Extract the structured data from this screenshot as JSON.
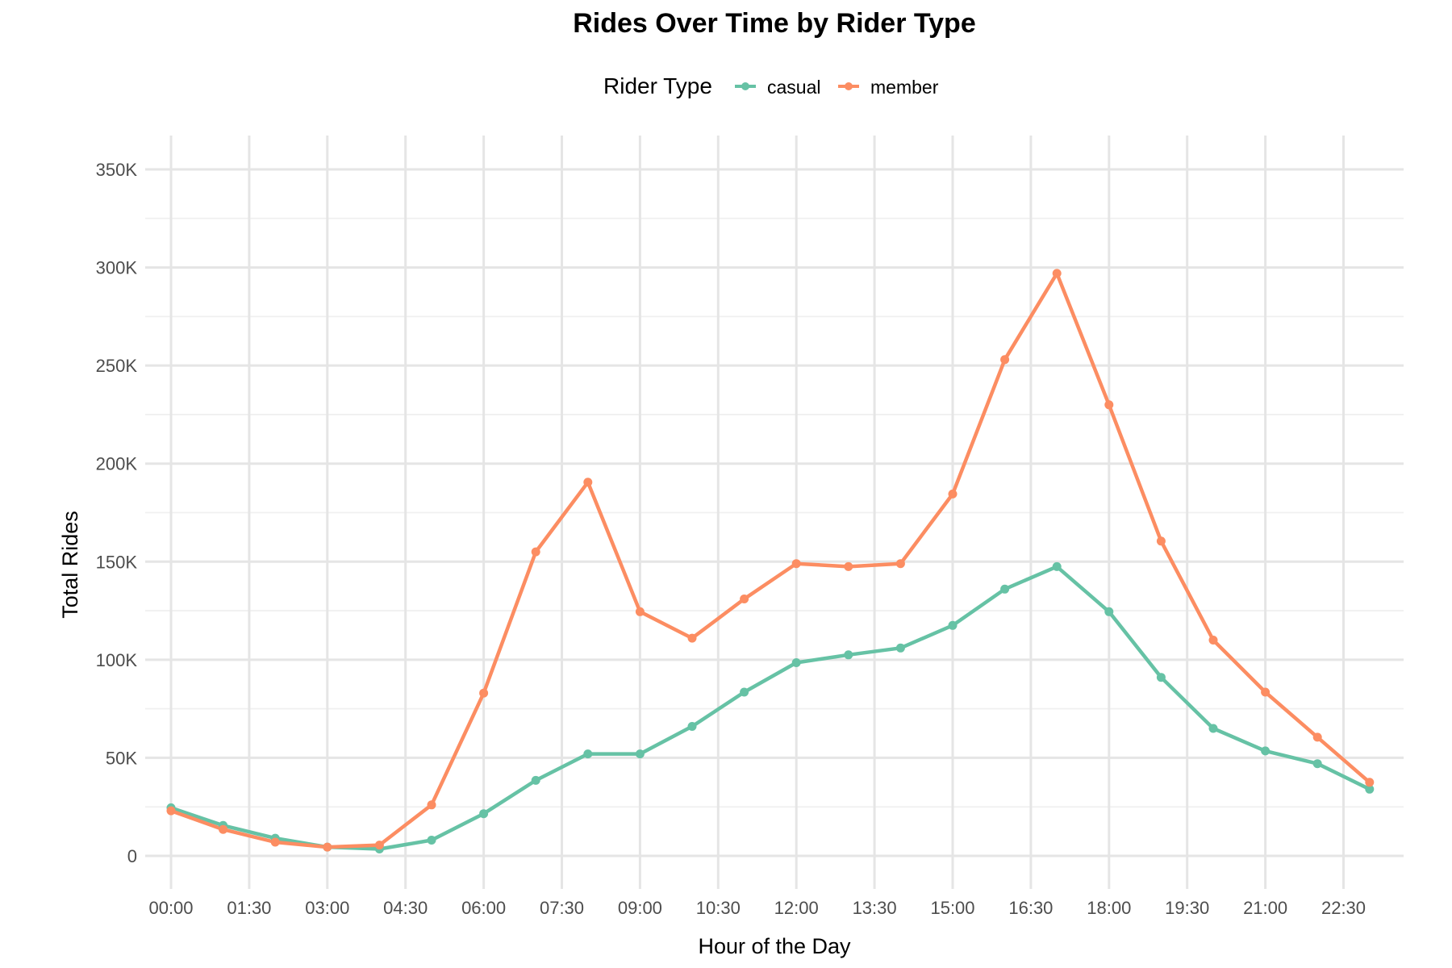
{
  "chart_data": {
    "type": "line",
    "title": "Rides Over Time by Rider Type",
    "xlabel": "Hour of the Day",
    "ylabel": "Total Rides",
    "legend": {
      "title": "Rider Type",
      "placement": "top"
    },
    "x_ticks": [
      "00:00",
      "01:30",
      "03:00",
      "04:30",
      "06:00",
      "07:30",
      "09:00",
      "10:30",
      "12:00",
      "13:30",
      "15:00",
      "16:30",
      "18:00",
      "19:30",
      "21:00",
      "22:30"
    ],
    "y_ticks": [
      "0",
      "50K",
      "100K",
      "150K",
      "200K",
      "250K",
      "300K",
      "350K"
    ],
    "ylim": [
      0,
      350000
    ],
    "grid": true,
    "x": [
      "00:00",
      "01:00",
      "02:00",
      "03:00",
      "04:00",
      "05:00",
      "06:00",
      "07:00",
      "08:00",
      "09:00",
      "10:00",
      "11:00",
      "12:00",
      "13:00",
      "14:00",
      "15:00",
      "16:00",
      "17:00",
      "18:00",
      "19:00",
      "20:00",
      "21:00",
      "22:00",
      "23:00"
    ],
    "series": [
      {
        "name": "casual",
        "color": "#66c2a5",
        "values": [
          24500,
          15500,
          9000,
          4500,
          3500,
          8000,
          21500,
          38500,
          52000,
          52000,
          66000,
          83500,
          98500,
          102500,
          106000,
          117500,
          136000,
          147500,
          124500,
          91000,
          65000,
          53500,
          47000,
          34000
        ]
      },
      {
        "name": "member",
        "color": "#fc8d62",
        "values": [
          23000,
          13500,
          7000,
          4500,
          5500,
          26000,
          83000,
          155000,
          190500,
          124500,
          111000,
          131000,
          149000,
          147500,
          149000,
          184500,
          253000,
          297000,
          230000,
          160500,
          110000,
          83500,
          60500,
          37500
        ]
      }
    ]
  }
}
